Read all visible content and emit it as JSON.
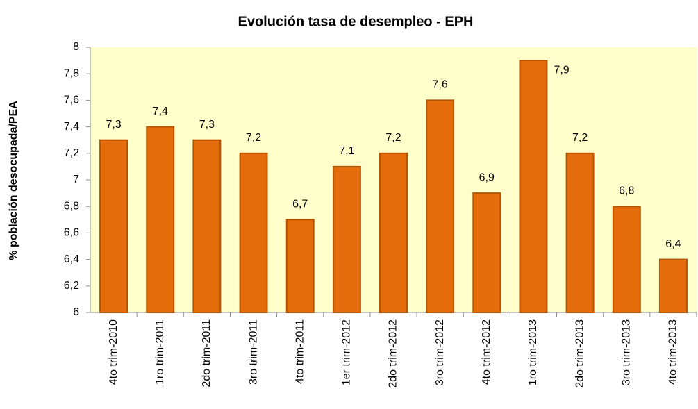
{
  "chart_data": {
    "type": "bar",
    "title": "Evolución tasa de  desempleo - EPH",
    "y_axis_label": "% población  desocupada/PEA",
    "categories": [
      "4to trim-2010",
      "1ro trim-2011",
      "2do trim-2011",
      "3ro trim-2011",
      "4to trim-2011",
      "1er trim-2012",
      "2do trim-2012",
      "3ro trim-2012",
      "4to trim-2012",
      "1ro trim-2013",
      "2do trim-2013",
      "3ro trim-2013",
      "4to trim-2013"
    ],
    "values": [
      7.3,
      7.4,
      7.3,
      7.2,
      6.7,
      7.1,
      7.2,
      7.6,
      6.9,
      7.9,
      7.2,
      6.8,
      6.4
    ],
    "value_labels": [
      "7,3",
      "7,4",
      "7,3",
      "7,2",
      "6,7",
      "7,1",
      "7,2",
      "7,6",
      "6,9",
      "7,9",
      "7,2",
      "6,8",
      "6,4"
    ],
    "color": "#e46c0a",
    "plot_background": "#ffffcc",
    "ylim": [
      6,
      8
    ],
    "yticks": [
      6,
      {
        "value": 6.2,
        "label": "6,2"
      },
      {
        "value": 6.4,
        "label": "6,4"
      },
      {
        "value": 6.6,
        "label": "6,6"
      },
      {
        "value": 6.8,
        "label": "6,8"
      },
      7,
      {
        "value": 7.2,
        "label": "7,2"
      },
      {
        "value": 7.4,
        "label": "7,4"
      },
      {
        "value": 7.6,
        "label": "7,6"
      },
      {
        "value": 7.8,
        "label": "7,8"
      },
      8
    ],
    "grid": false
  }
}
